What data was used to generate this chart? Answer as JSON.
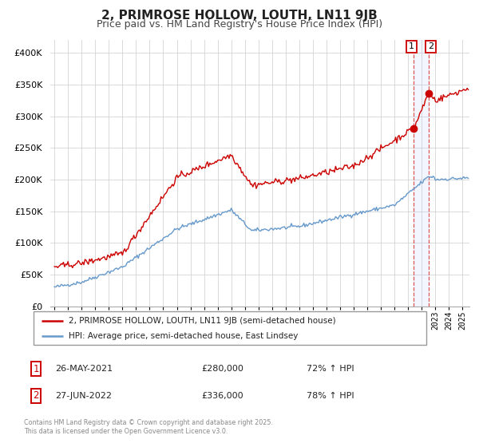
{
  "title": "2, PRIMROSE HOLLOW, LOUTH, LN11 9JB",
  "subtitle": "Price paid vs. HM Land Registry's House Price Index (HPI)",
  "legend_label_1": "2, PRIMROSE HOLLOW, LOUTH, LN11 9JB (semi-detached house)",
  "legend_label_2": "HPI: Average price, semi-detached house, East Lindsey",
  "annotation_footer": "Contains HM Land Registry data © Crown copyright and database right 2025.\nThis data is licensed under the Open Government Licence v3.0.",
  "red_color": "#cc0000",
  "blue_color": "#6699cc",
  "point1_date": 2021.41,
  "point1_value": 280000,
  "point2_date": 2022.49,
  "point2_value": 336000,
  "table_row1": [
    "1",
    "26-MAY-2021",
    "£280,000",
    "72% ↑ HPI"
  ],
  "table_row2": [
    "2",
    "27-JUN-2022",
    "£336,000",
    "78% ↑ HPI"
  ],
  "ylim": [
    0,
    420000
  ],
  "xlim_start": 1994.7,
  "xlim_end": 2025.5,
  "vline1_x": 2021.41,
  "vline2_x": 2022.49,
  "background_color": "#ffffff",
  "grid_color": "#cccccc",
  "title_fontsize": 11,
  "subtitle_fontsize": 9
}
